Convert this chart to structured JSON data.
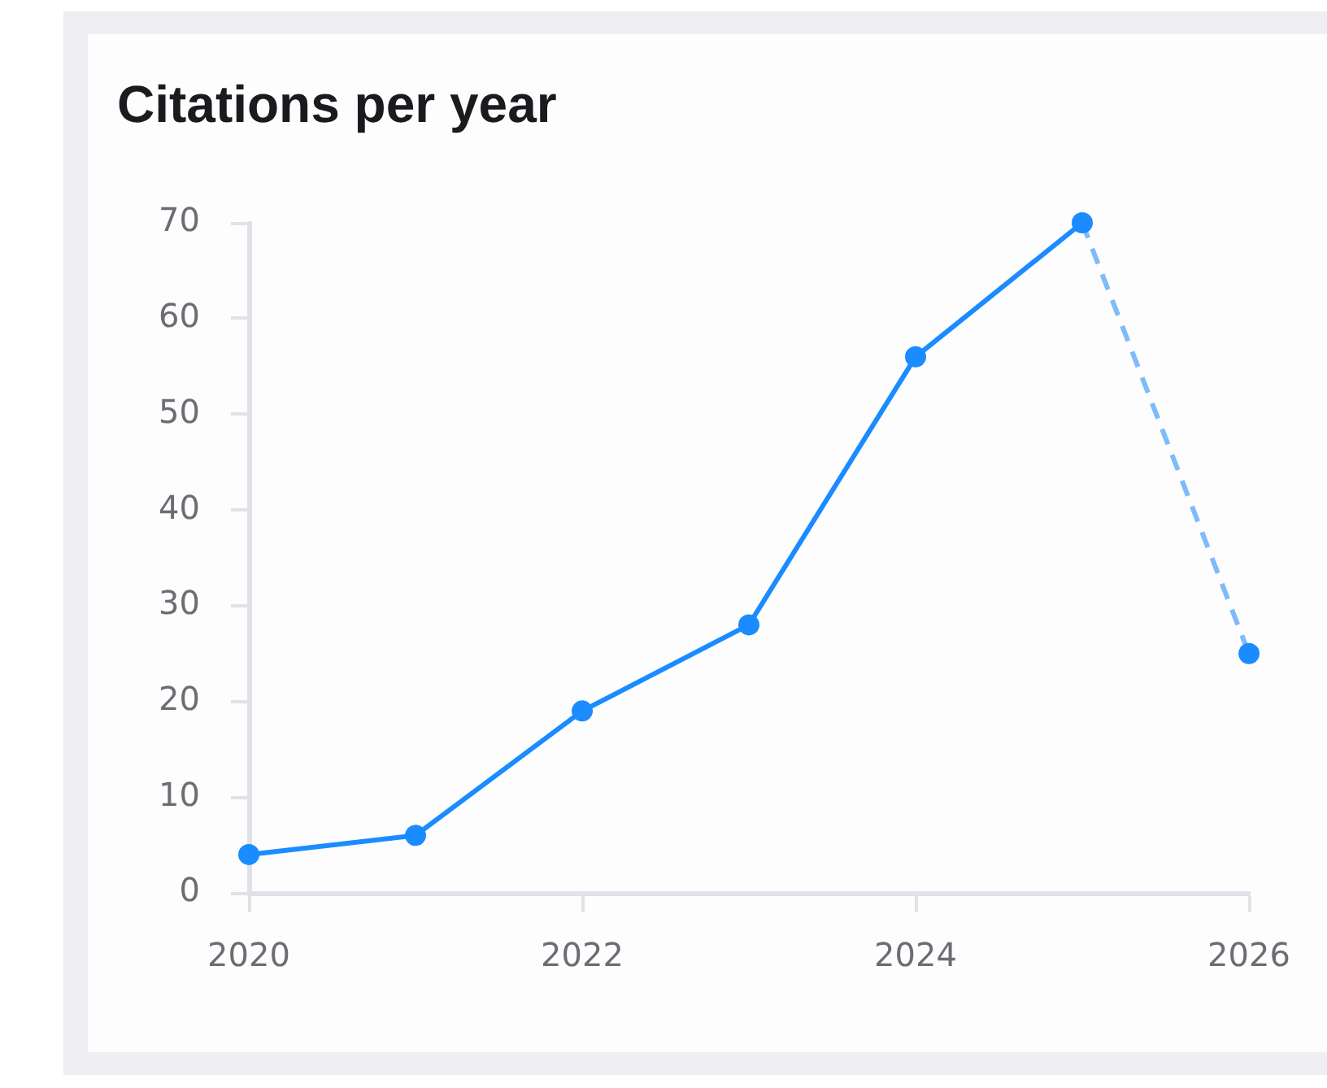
{
  "chart_data": {
    "type": "line",
    "title": "Citations per year",
    "xlim": [
      2020,
      2026
    ],
    "xticks": [
      2020,
      2022,
      2024,
      2026
    ],
    "ylim": [
      0,
      70
    ],
    "yticks": [
      0,
      10,
      20,
      30,
      40,
      50,
      60,
      70
    ],
    "marker": "circle",
    "series": [
      {
        "type": "line",
        "x": [
          2020,
          2021,
          2022,
          2023,
          2024,
          2025
        ],
        "values": [
          4,
          6,
          19,
          28,
          56,
          70
        ],
        "color": "#1a8cff",
        "line_style": "solid"
      },
      {
        "type": "line",
        "x": [
          2025,
          2026
        ],
        "values": [
          70,
          25
        ],
        "color": "#7fbbf8",
        "line_style": "dashed",
        "marker": "none"
      },
      {
        "type": "scatter",
        "x": [
          2026
        ],
        "values": [
          25
        ],
        "color": "#1a8cff"
      }
    ]
  }
}
